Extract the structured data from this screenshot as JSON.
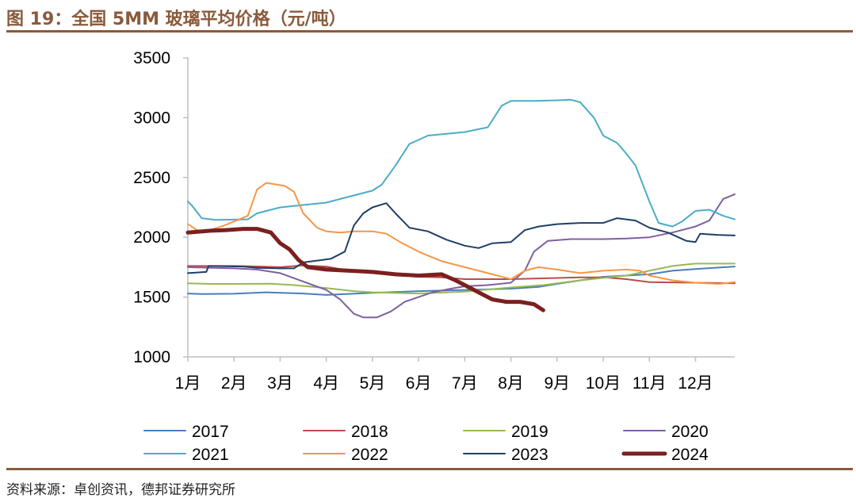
{
  "figure": {
    "title": "图 19：全国 5MM 玻璃平均价格（元/吨）",
    "source": "资料来源：卓创资讯，德邦证券研究所"
  },
  "chart_data": {
    "type": "line",
    "title": "全国 5MM 玻璃平均价格（元/吨）",
    "xlabel": "",
    "ylabel": "元/吨",
    "ylim": [
      1000,
      3500
    ],
    "xlim": [
      1,
      12.85
    ],
    "yticks": [
      "1000",
      "1500",
      "2000",
      "2500",
      "3000",
      "3500"
    ],
    "xticks": [
      {
        "x": 1,
        "label": "1月"
      },
      {
        "x": 2,
        "label": "2月"
      },
      {
        "x": 3,
        "label": "3月"
      },
      {
        "x": 4,
        "label": "4月"
      },
      {
        "x": 5,
        "label": "5月"
      },
      {
        "x": 6,
        "label": "6月"
      },
      {
        "x": 7,
        "label": "7月"
      },
      {
        "x": 8,
        "label": "8月"
      },
      {
        "x": 9,
        "label": "9月"
      },
      {
        "x": 10,
        "label": "10月"
      },
      {
        "x": 11,
        "label": "11月"
      },
      {
        "x": 12,
        "label": "12月"
      }
    ],
    "grid": false,
    "legend_position": "bottom",
    "series": [
      {
        "name": "2017",
        "color": "#4a7ebb",
        "width": 2,
        "points": [
          [
            1,
            1530
          ],
          [
            1.3,
            1525
          ],
          [
            2,
            1528
          ],
          [
            2.7,
            1540
          ],
          [
            3.5,
            1530
          ],
          [
            4,
            1518
          ],
          [
            5,
            1535
          ],
          [
            6,
            1550
          ],
          [
            7,
            1560
          ],
          [
            8,
            1570
          ],
          [
            8.6,
            1585
          ],
          [
            9,
            1610
          ],
          [
            9.5,
            1640
          ],
          [
            10,
            1670
          ],
          [
            11,
            1690
          ],
          [
            11.5,
            1720
          ],
          [
            12,
            1735
          ],
          [
            12.85,
            1755
          ]
        ]
      },
      {
        "name": "2018",
        "color": "#be4b48",
        "width": 2,
        "points": [
          [
            1,
            1760
          ],
          [
            2,
            1760
          ],
          [
            2.6,
            1755
          ],
          [
            3,
            1750
          ],
          [
            3.5,
            1765
          ],
          [
            4,
            1755
          ],
          [
            4.5,
            1720
          ],
          [
            5,
            1700
          ],
          [
            5.5,
            1685
          ],
          [
            6,
            1670
          ],
          [
            6.5,
            1665
          ],
          [
            7,
            1650
          ],
          [
            8,
            1650
          ],
          [
            8.5,
            1655
          ],
          [
            9,
            1660
          ],
          [
            9.5,
            1665
          ],
          [
            10,
            1665
          ],
          [
            10.5,
            1650
          ],
          [
            11,
            1625
          ],
          [
            12,
            1620
          ],
          [
            12.85,
            1615
          ]
        ]
      },
      {
        "name": "2019",
        "color": "#98b954",
        "width": 2,
        "points": [
          [
            1,
            1615
          ],
          [
            1.5,
            1610
          ],
          [
            2,
            1610
          ],
          [
            2.8,
            1612
          ],
          [
            3.3,
            1600
          ],
          [
            4,
            1575
          ],
          [
            4.6,
            1550
          ],
          [
            5,
            1540
          ],
          [
            6,
            1530
          ],
          [
            7,
            1545
          ],
          [
            8,
            1580
          ],
          [
            8.7,
            1600
          ],
          [
            9.5,
            1640
          ],
          [
            10.5,
            1680
          ],
          [
            11,
            1720
          ],
          [
            11.5,
            1760
          ],
          [
            12,
            1780
          ],
          [
            12.85,
            1780
          ]
        ]
      },
      {
        "name": "2020",
        "color": "#7d60a0",
        "width": 2,
        "points": [
          [
            1,
            1750
          ],
          [
            2,
            1740
          ],
          [
            2.5,
            1730
          ],
          [
            3,
            1700
          ],
          [
            3.5,
            1630
          ],
          [
            4,
            1560
          ],
          [
            4.3,
            1480
          ],
          [
            4.6,
            1360
          ],
          [
            4.8,
            1330
          ],
          [
            5.1,
            1330
          ],
          [
            5.4,
            1380
          ],
          [
            5.7,
            1460
          ],
          [
            6,
            1500
          ],
          [
            6.3,
            1540
          ],
          [
            6.7,
            1570
          ],
          [
            7,
            1590
          ],
          [
            7.5,
            1600
          ],
          [
            8,
            1620
          ],
          [
            8.3,
            1720
          ],
          [
            8.5,
            1880
          ],
          [
            8.8,
            1970
          ],
          [
            9.3,
            1985
          ],
          [
            10,
            1985
          ],
          [
            10.5,
            1990
          ],
          [
            11,
            2000
          ],
          [
            11.5,
            2040
          ],
          [
            12,
            2090
          ],
          [
            12.3,
            2140
          ],
          [
            12.6,
            2320
          ],
          [
            12.85,
            2360
          ]
        ]
      },
      {
        "name": "2021",
        "color": "#4bacc6",
        "width": 2,
        "points": [
          [
            1,
            2300
          ],
          [
            1.1,
            2260
          ],
          [
            1.3,
            2160
          ],
          [
            1.6,
            2145
          ],
          [
            2.3,
            2150
          ],
          [
            2.5,
            2200
          ],
          [
            3,
            2250
          ],
          [
            3.5,
            2270
          ],
          [
            4,
            2290
          ],
          [
            4.5,
            2340
          ],
          [
            5,
            2390
          ],
          [
            5.2,
            2440
          ],
          [
            5.5,
            2600
          ],
          [
            5.8,
            2780
          ],
          [
            6.2,
            2850
          ],
          [
            7,
            2880
          ],
          [
            7.5,
            2920
          ],
          [
            7.8,
            3100
          ],
          [
            8,
            3140
          ],
          [
            8.5,
            3140
          ],
          [
            9,
            3145
          ],
          [
            9.3,
            3150
          ],
          [
            9.5,
            3130
          ],
          [
            9.8,
            3000
          ],
          [
            10,
            2850
          ],
          [
            10.3,
            2790
          ],
          [
            10.5,
            2700
          ],
          [
            10.7,
            2600
          ],
          [
            11,
            2300
          ],
          [
            11.2,
            2120
          ],
          [
            11.5,
            2090
          ],
          [
            11.7,
            2130
          ],
          [
            12,
            2220
          ],
          [
            12.3,
            2230
          ],
          [
            12.6,
            2180
          ],
          [
            12.85,
            2150
          ]
        ]
      },
      {
        "name": "2022",
        "color": "#f79646",
        "width": 2,
        "points": [
          [
            1,
            2110
          ],
          [
            1.2,
            2060
          ],
          [
            1.4,
            2050
          ],
          [
            1.8,
            2100
          ],
          [
            2.3,
            2180
          ],
          [
            2.5,
            2400
          ],
          [
            2.7,
            2455
          ],
          [
            3.1,
            2430
          ],
          [
            3.3,
            2380
          ],
          [
            3.5,
            2200
          ],
          [
            3.8,
            2080
          ],
          [
            4,
            2050
          ],
          [
            4.3,
            2040
          ],
          [
            4.6,
            2050
          ],
          [
            5,
            2050
          ],
          [
            5.3,
            2030
          ],
          [
            5.6,
            1960
          ],
          [
            6,
            1880
          ],
          [
            6.5,
            1800
          ],
          [
            7,
            1750
          ],
          [
            7.5,
            1700
          ],
          [
            8,
            1650
          ],
          [
            8.3,
            1720
          ],
          [
            8.6,
            1750
          ],
          [
            9,
            1730
          ],
          [
            9.5,
            1700
          ],
          [
            10,
            1720
          ],
          [
            10.5,
            1730
          ],
          [
            10.8,
            1720
          ],
          [
            11,
            1680
          ],
          [
            11.5,
            1640
          ],
          [
            12,
            1620
          ],
          [
            12.5,
            1610
          ],
          [
            12.85,
            1625
          ]
        ]
      },
      {
        "name": "2023",
        "color": "#1f3f66",
        "width": 2,
        "points": [
          [
            1,
            1700
          ],
          [
            1.4,
            1710
          ],
          [
            1.45,
            1760
          ],
          [
            2.2,
            1755
          ],
          [
            2.5,
            1745
          ],
          [
            3,
            1740
          ],
          [
            3.3,
            1740
          ],
          [
            3.5,
            1790
          ],
          [
            3.9,
            1810
          ],
          [
            4.1,
            1820
          ],
          [
            4.4,
            1880
          ],
          [
            4.6,
            2100
          ],
          [
            4.8,
            2200
          ],
          [
            5,
            2250
          ],
          [
            5.3,
            2285
          ],
          [
            5.5,
            2200
          ],
          [
            5.8,
            2080
          ],
          [
            6.2,
            2050
          ],
          [
            6.6,
            1980
          ],
          [
            7,
            1930
          ],
          [
            7.3,
            1910
          ],
          [
            7.6,
            1950
          ],
          [
            8,
            1960
          ],
          [
            8.3,
            2060
          ],
          [
            8.6,
            2090
          ],
          [
            9,
            2110
          ],
          [
            9.5,
            2120
          ],
          [
            10,
            2120
          ],
          [
            10.3,
            2160
          ],
          [
            10.7,
            2140
          ],
          [
            11,
            2080
          ],
          [
            11.4,
            2040
          ],
          [
            11.8,
            1970
          ],
          [
            12,
            1960
          ],
          [
            12.1,
            2030
          ],
          [
            12.5,
            2020
          ],
          [
            12.85,
            2015
          ]
        ]
      },
      {
        "name": "2024",
        "color": "#7b1f1f",
        "width": 5,
        "points": [
          [
            1,
            2040
          ],
          [
            1.5,
            2055
          ],
          [
            1.8,
            2060
          ],
          [
            2.2,
            2070
          ],
          [
            2.5,
            2070
          ],
          [
            2.8,
            2040
          ],
          [
            3,
            1950
          ],
          [
            3.2,
            1900
          ],
          [
            3.4,
            1810
          ],
          [
            3.6,
            1750
          ],
          [
            4,
            1730
          ],
          [
            4.5,
            1720
          ],
          [
            5,
            1710
          ],
          [
            5.5,
            1690
          ],
          [
            6,
            1680
          ],
          [
            6.5,
            1690
          ],
          [
            6.8,
            1640
          ],
          [
            7,
            1600
          ],
          [
            7.3,
            1540
          ],
          [
            7.6,
            1480
          ],
          [
            7.9,
            1460
          ],
          [
            8.2,
            1460
          ],
          [
            8.5,
            1440
          ],
          [
            8.7,
            1390
          ]
        ]
      }
    ]
  }
}
